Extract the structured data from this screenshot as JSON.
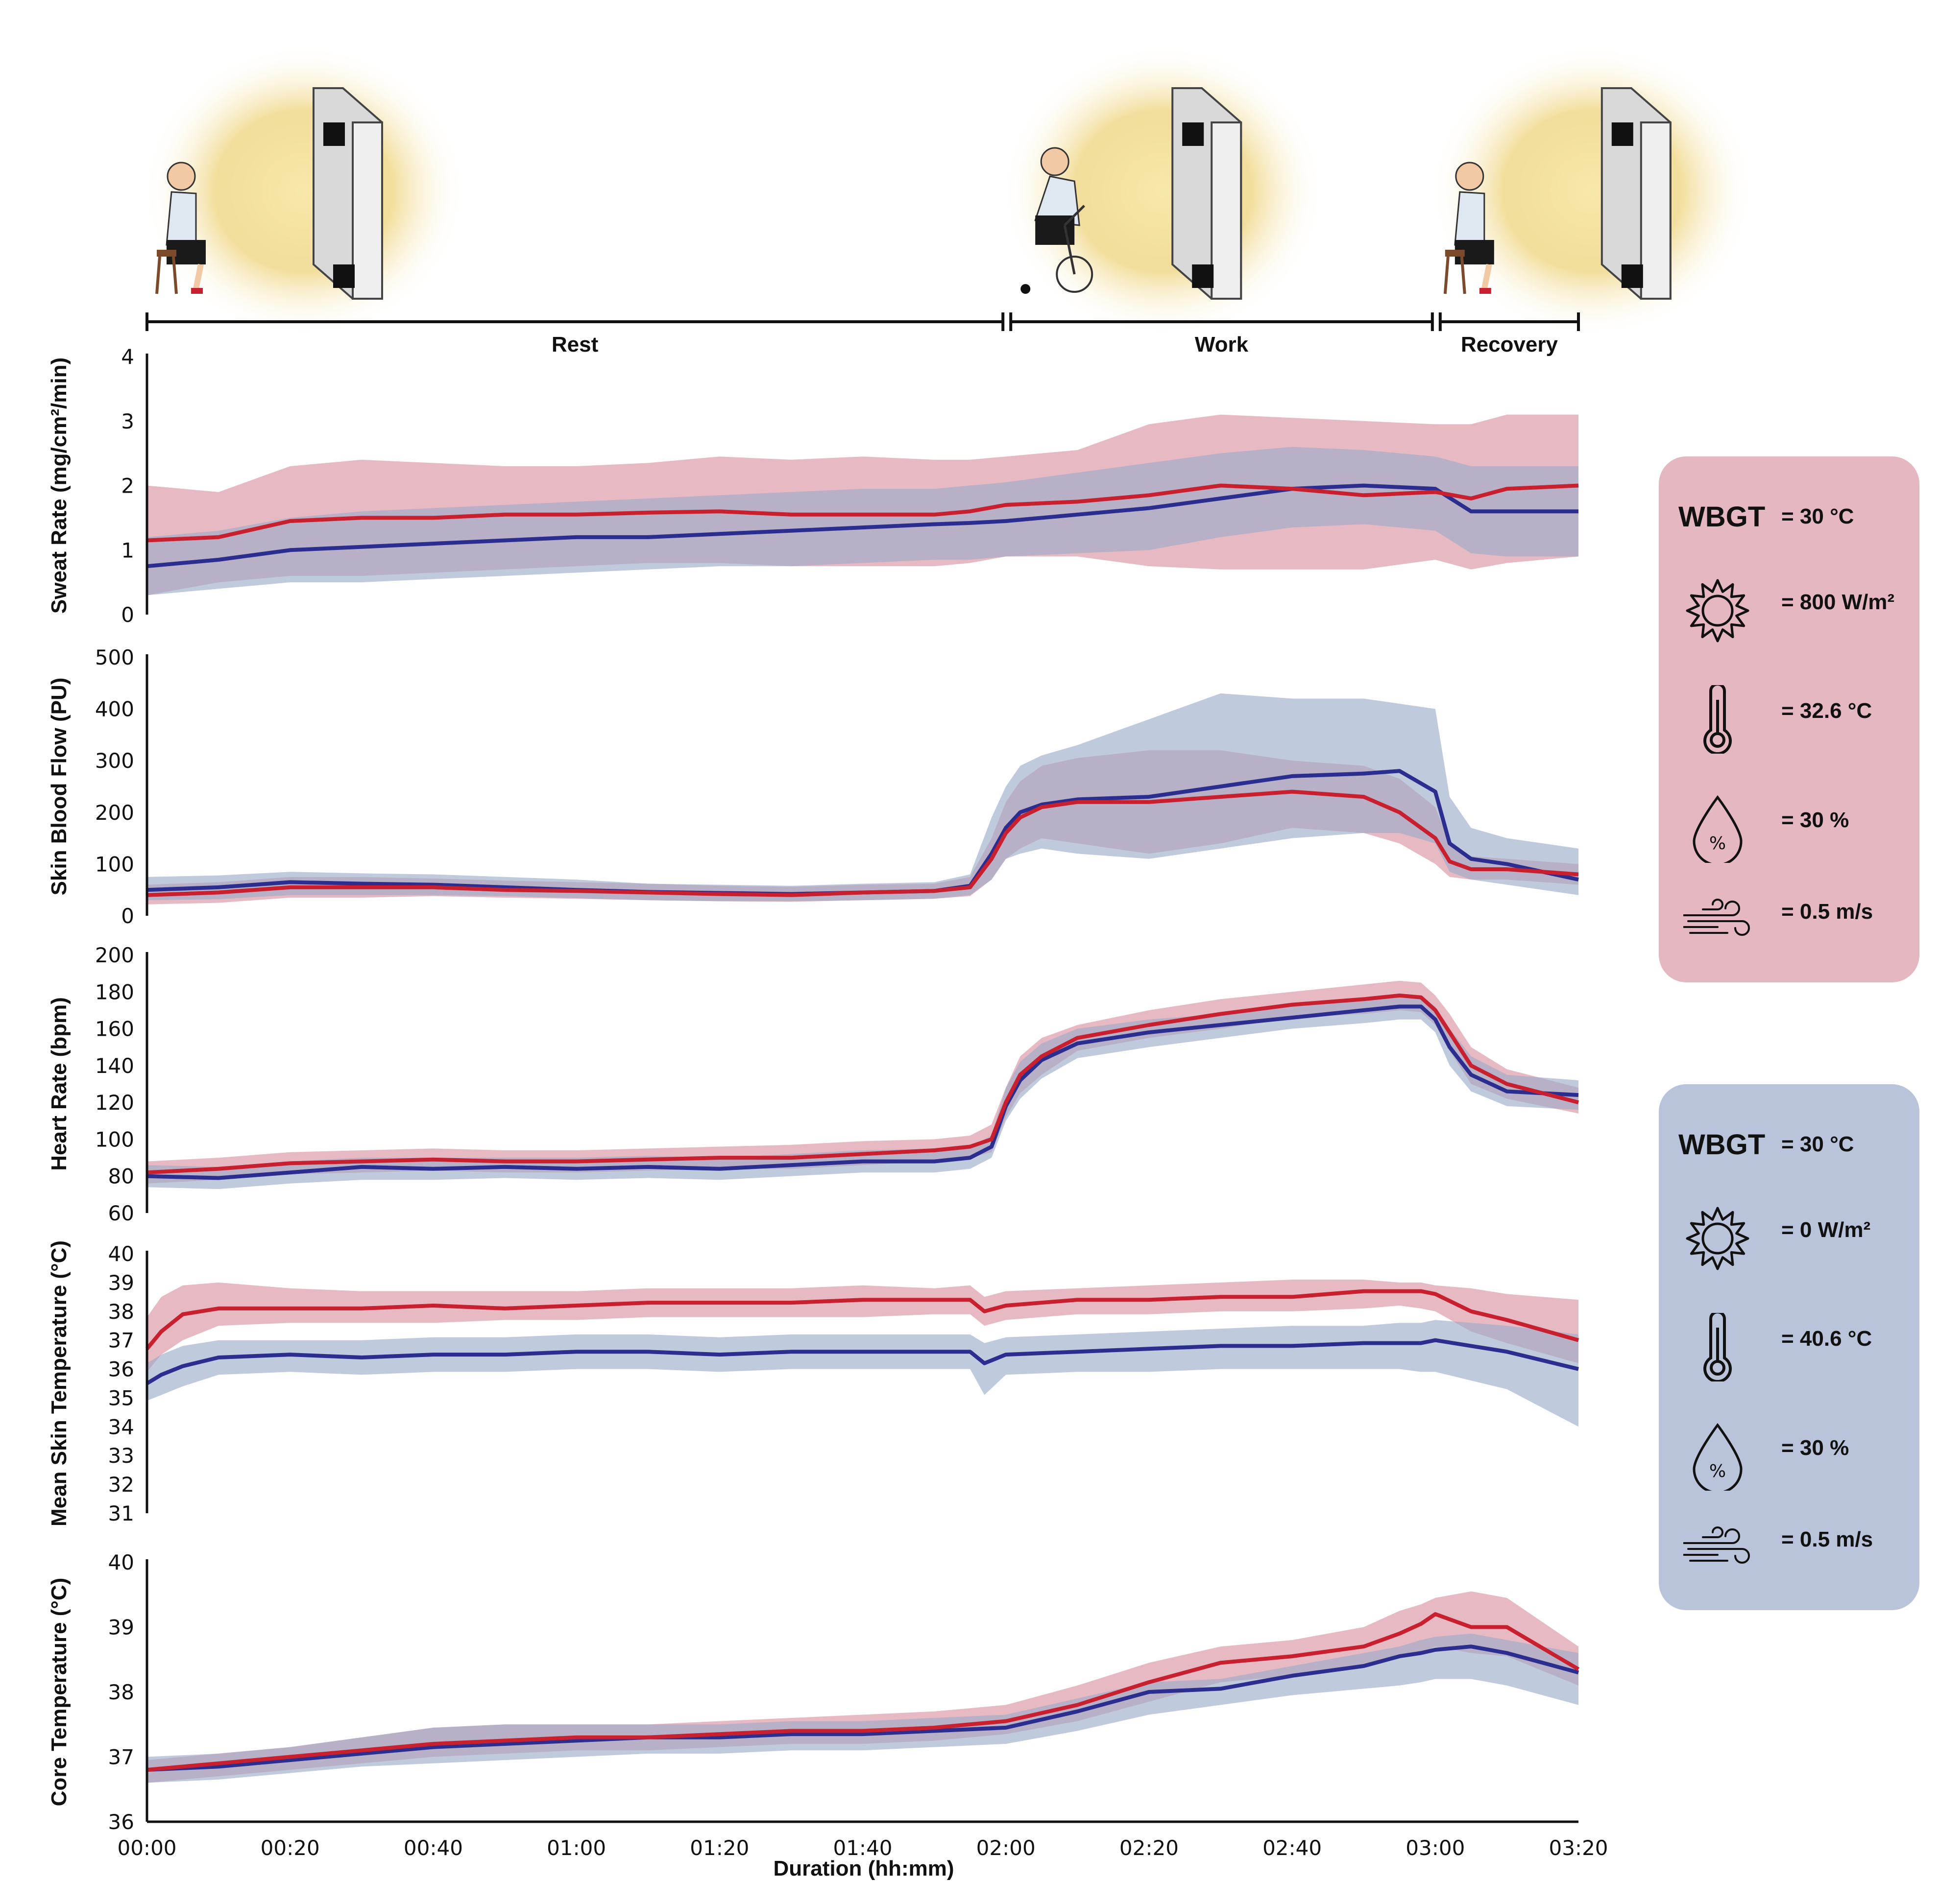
{
  "colors": {
    "heat": "#c8202f",
    "heat_band": "#d9909e",
    "cool": "#2b2d8f",
    "cool_band": "#9aaac8",
    "heat_box": "#e5b7c1",
    "cool_box": "#b9c4da"
  },
  "phases": [
    {
      "label": "Rest",
      "from": 0,
      "to": 120
    },
    {
      "label": "Work",
      "from": 120,
      "to": 180
    },
    {
      "label": "Recovery",
      "from": 180,
      "to": 200
    }
  ],
  "illustrations": [
    {
      "name": "seated-person-lamp-panel",
      "at": 0
    },
    {
      "name": "cycling-person-lamp-panel",
      "at": 120
    },
    {
      "name": "seated-person-lamp-panel",
      "at": 180
    }
  ],
  "legends": [
    {
      "wbgt_label": "WBGT",
      "wbgt": "= 30 °C",
      "solar": "= 800 W/m²",
      "temp": "= 32.6 °C",
      "humidity": "= 30 %",
      "wind": "= 0.5 m/s",
      "series": "heat"
    },
    {
      "wbgt_label": "WBGT",
      "wbgt": "= 30 °C",
      "solar": "= 0 W/m²",
      "temp": "= 40.6 °C",
      "humidity": "= 30 %",
      "wind": "= 0.5 m/s",
      "series": "cool"
    }
  ],
  "chart_data": [
    {
      "type": "line",
      "ylabel": "Sweat Rate (mg/cm²/min)",
      "ylim": [
        0,
        4
      ],
      "yticks": [
        0,
        1,
        2,
        3,
        4
      ],
      "xlim": [
        0,
        200
      ],
      "x": [
        0,
        10,
        20,
        30,
        40,
        50,
        60,
        70,
        80,
        90,
        100,
        110,
        115,
        120,
        130,
        140,
        150,
        160,
        170,
        180,
        185,
        190,
        200
      ],
      "series": [
        {
          "name": "heat",
          "mean": [
            1.15,
            1.2,
            1.45,
            1.5,
            1.5,
            1.55,
            1.55,
            1.58,
            1.6,
            1.55,
            1.55,
            1.55,
            1.6,
            1.7,
            1.75,
            1.85,
            2.0,
            1.95,
            1.85,
            1.9,
            1.8,
            1.95,
            2.0
          ],
          "upper": [
            2.0,
            1.9,
            2.3,
            2.4,
            2.35,
            2.3,
            2.3,
            2.35,
            2.45,
            2.4,
            2.45,
            2.4,
            2.4,
            2.45,
            2.55,
            2.95,
            3.1,
            3.05,
            3.0,
            2.95,
            2.95,
            3.1,
            3.1
          ],
          "lower": [
            0.3,
            0.5,
            0.6,
            0.6,
            0.65,
            0.7,
            0.75,
            0.8,
            0.8,
            0.75,
            0.75,
            0.75,
            0.8,
            0.9,
            0.9,
            0.75,
            0.7,
            0.7,
            0.7,
            0.85,
            0.7,
            0.8,
            0.9
          ]
        },
        {
          "name": "cool",
          "mean": [
            0.75,
            0.85,
            1.0,
            1.05,
            1.1,
            1.15,
            1.2,
            1.2,
            1.25,
            1.3,
            1.35,
            1.4,
            1.42,
            1.45,
            1.55,
            1.65,
            1.8,
            1.95,
            2.0,
            1.95,
            1.6,
            1.6,
            1.6
          ],
          "upper": [
            1.2,
            1.3,
            1.5,
            1.6,
            1.65,
            1.7,
            1.75,
            1.8,
            1.85,
            1.9,
            1.95,
            1.95,
            2.0,
            2.05,
            2.2,
            2.35,
            2.5,
            2.6,
            2.55,
            2.45,
            2.3,
            2.3,
            2.3
          ],
          "lower": [
            0.3,
            0.4,
            0.5,
            0.5,
            0.55,
            0.6,
            0.65,
            0.7,
            0.75,
            0.75,
            0.8,
            0.85,
            0.85,
            0.9,
            0.95,
            1.0,
            1.2,
            1.35,
            1.4,
            1.3,
            0.95,
            0.9,
            0.9
          ]
        }
      ]
    },
    {
      "type": "line",
      "ylabel": "Skin Blood Flow (PU)",
      "ylim": [
        0,
        500
      ],
      "yticks": [
        0,
        100,
        200,
        300,
        400,
        500
      ],
      "xlim": [
        0,
        200
      ],
      "x": [
        0,
        10,
        20,
        30,
        40,
        50,
        60,
        70,
        80,
        90,
        100,
        110,
        115,
        118,
        120,
        122,
        125,
        130,
        140,
        150,
        160,
        170,
        175,
        180,
        182,
        185,
        190,
        200
      ],
      "series": [
        {
          "name": "heat",
          "mean": [
            40,
            45,
            55,
            55,
            55,
            50,
            48,
            45,
            42,
            40,
            45,
            48,
            55,
            110,
            160,
            190,
            210,
            220,
            220,
            230,
            240,
            230,
            200,
            150,
            105,
            90,
            90,
            80
          ],
          "upper": [
            60,
            65,
            75,
            75,
            72,
            68,
            65,
            62,
            58,
            56,
            60,
            62,
            75,
            150,
            220,
            260,
            290,
            305,
            320,
            320,
            300,
            290,
            265,
            210,
            140,
            115,
            110,
            100
          ],
          "lower": [
            22,
            25,
            35,
            35,
            38,
            35,
            33,
            30,
            28,
            27,
            30,
            33,
            38,
            70,
            110,
            130,
            150,
            140,
            120,
            140,
            170,
            160,
            140,
            100,
            75,
            70,
            70,
            60
          ]
        },
        {
          "name": "cool",
          "mean": [
            50,
            55,
            65,
            62,
            60,
            55,
            50,
            46,
            44,
            42,
            45,
            48,
            58,
            120,
            170,
            200,
            215,
            225,
            230,
            250,
            270,
            275,
            280,
            240,
            140,
            110,
            100,
            70
          ],
          "upper": [
            75,
            78,
            85,
            82,
            80,
            75,
            70,
            62,
            60,
            58,
            62,
            65,
            80,
            190,
            250,
            290,
            310,
            330,
            380,
            430,
            420,
            420,
            410,
            400,
            230,
            170,
            150,
            130
          ],
          "lower": [
            30,
            32,
            40,
            40,
            40,
            38,
            34,
            30,
            28,
            28,
            30,
            33,
            40,
            70,
            110,
            120,
            130,
            120,
            110,
            130,
            150,
            160,
            160,
            140,
            85,
            70,
            60,
            40
          ]
        }
      ]
    },
    {
      "type": "line",
      "ylabel": "Heart Rate (bpm)",
      "ylim": [
        60,
        200
      ],
      "yticks": [
        60,
        80,
        100,
        120,
        140,
        160,
        180,
        200
      ],
      "xlim": [
        0,
        200
      ],
      "x": [
        0,
        10,
        20,
        30,
        40,
        50,
        60,
        70,
        80,
        90,
        100,
        110,
        115,
        118,
        120,
        122,
        125,
        130,
        140,
        150,
        160,
        170,
        175,
        178,
        180,
        182,
        185,
        190,
        200
      ],
      "series": [
        {
          "name": "heat",
          "mean": [
            82,
            84,
            87,
            88,
            89,
            88,
            88,
            89,
            90,
            90,
            92,
            94,
            96,
            100,
            120,
            135,
            145,
            155,
            162,
            168,
            173,
            176,
            178,
            177,
            170,
            158,
            140,
            130,
            120
          ],
          "upper": [
            88,
            90,
            93,
            94,
            95,
            94,
            94,
            95,
            96,
            97,
            99,
            100,
            102,
            108,
            128,
            145,
            155,
            162,
            170,
            176,
            180,
            184,
            186,
            185,
            178,
            168,
            150,
            138,
            128
          ],
          "lower": [
            76,
            78,
            81,
            82,
            83,
            82,
            82,
            83,
            84,
            84,
            86,
            88,
            90,
            93,
            112,
            125,
            135,
            148,
            155,
            160,
            166,
            168,
            170,
            169,
            162,
            148,
            130,
            122,
            114
          ]
        },
        {
          "name": "cool",
          "mean": [
            80,
            79,
            82,
            85,
            84,
            85,
            84,
            85,
            84,
            86,
            88,
            88,
            90,
            96,
            118,
            132,
            143,
            152,
            158,
            162,
            166,
            170,
            172,
            172,
            165,
            150,
            135,
            126,
            124
          ],
          "upper": [
            86,
            85,
            88,
            90,
            90,
            90,
            90,
            91,
            90,
            92,
            94,
            95,
            96,
            102,
            128,
            142,
            152,
            160,
            165,
            168,
            172,
            176,
            178,
            178,
            172,
            160,
            145,
            135,
            132
          ],
          "lower": [
            74,
            73,
            76,
            78,
            78,
            79,
            78,
            79,
            78,
            80,
            82,
            82,
            84,
            90,
            110,
            122,
            133,
            144,
            150,
            155,
            160,
            163,
            165,
            165,
            158,
            140,
            126,
            118,
            116
          ]
        }
      ]
    },
    {
      "type": "line",
      "ylabel": "Mean Skin Temperature (°C)",
      "ylim": [
        31,
        40
      ],
      "yticks": [
        31,
        32,
        33,
        34,
        35,
        36,
        37,
        38,
        39,
        40
      ],
      "xlim": [
        0,
        200
      ],
      "x": [
        0,
        2,
        5,
        10,
        20,
        30,
        40,
        50,
        60,
        70,
        80,
        90,
        100,
        110,
        115,
        117,
        120,
        130,
        140,
        150,
        160,
        170,
        175,
        178,
        180,
        185,
        190,
        200
      ],
      "series": [
        {
          "name": "heat",
          "mean": [
            36.7,
            37.3,
            37.9,
            38.1,
            38.1,
            38.1,
            38.2,
            38.1,
            38.2,
            38.3,
            38.3,
            38.3,
            38.4,
            38.4,
            38.4,
            38.0,
            38.2,
            38.4,
            38.4,
            38.5,
            38.5,
            38.7,
            38.7,
            38.7,
            38.6,
            38.0,
            37.7,
            37.0
          ],
          "upper": [
            37.8,
            38.5,
            38.9,
            39.0,
            38.8,
            38.7,
            38.7,
            38.7,
            38.7,
            38.8,
            38.8,
            38.8,
            38.9,
            38.8,
            38.9,
            38.5,
            38.7,
            38.8,
            38.9,
            39.0,
            39.1,
            39.1,
            39.0,
            39.0,
            38.9,
            38.8,
            38.6,
            38.4
          ],
          "lower": [
            35.9,
            36.5,
            37.0,
            37.5,
            37.6,
            37.6,
            37.6,
            37.7,
            37.7,
            37.8,
            37.8,
            37.8,
            37.8,
            37.9,
            37.9,
            37.5,
            37.7,
            37.9,
            37.9,
            38.0,
            38.0,
            38.1,
            38.2,
            38.1,
            38.0,
            37.3,
            36.9,
            36.2
          ]
        },
        {
          "name": "cool",
          "mean": [
            35.5,
            35.8,
            36.1,
            36.4,
            36.5,
            36.4,
            36.5,
            36.5,
            36.6,
            36.6,
            36.5,
            36.6,
            36.6,
            36.6,
            36.6,
            36.2,
            36.5,
            36.6,
            36.7,
            36.8,
            36.8,
            36.9,
            36.9,
            36.9,
            37.0,
            36.8,
            36.6,
            36.0
          ],
          "upper": [
            36.2,
            36.5,
            36.8,
            37.0,
            37.0,
            37.0,
            37.1,
            37.1,
            37.2,
            37.2,
            37.1,
            37.2,
            37.2,
            37.2,
            37.2,
            36.9,
            37.1,
            37.2,
            37.3,
            37.4,
            37.5,
            37.5,
            37.6,
            37.6,
            37.7,
            37.6,
            37.5,
            37.2
          ],
          "lower": [
            34.9,
            35.1,
            35.4,
            35.8,
            35.9,
            35.8,
            35.9,
            35.9,
            36.0,
            36.0,
            35.9,
            36.0,
            36.0,
            36.0,
            36.0,
            35.1,
            35.8,
            35.9,
            35.9,
            36.0,
            36.0,
            36.0,
            36.0,
            35.9,
            35.9,
            35.6,
            35.3,
            34.0
          ]
        }
      ]
    },
    {
      "type": "line",
      "ylabel": "Core Temperature (°C)",
      "ylim": [
        36,
        40
      ],
      "yticks": [
        36,
        37,
        38,
        39,
        40
      ],
      "xlim": [
        0,
        200
      ],
      "x": [
        0,
        10,
        20,
        30,
        40,
        50,
        60,
        70,
        80,
        90,
        100,
        110,
        120,
        130,
        140,
        150,
        160,
        170,
        175,
        178,
        180,
        185,
        190,
        200
      ],
      "series": [
        {
          "name": "heat",
          "mean": [
            36.8,
            36.9,
            37.0,
            37.1,
            37.2,
            37.25,
            37.3,
            37.3,
            37.35,
            37.4,
            37.4,
            37.45,
            37.55,
            37.8,
            38.15,
            38.45,
            38.55,
            38.7,
            38.9,
            39.05,
            39.2,
            39.0,
            39.0,
            38.35
          ],
          "upper": [
            36.95,
            37.05,
            37.15,
            37.3,
            37.45,
            37.5,
            37.5,
            37.5,
            37.55,
            37.6,
            37.65,
            37.7,
            37.8,
            38.1,
            38.45,
            38.7,
            38.8,
            39.0,
            39.25,
            39.35,
            39.45,
            39.55,
            39.45,
            38.7
          ],
          "lower": [
            36.6,
            36.7,
            36.8,
            36.9,
            37.0,
            37.05,
            37.1,
            37.1,
            37.15,
            37.2,
            37.2,
            37.25,
            37.35,
            37.55,
            37.85,
            38.15,
            38.25,
            38.4,
            38.55,
            38.6,
            38.7,
            38.6,
            38.55,
            38.1
          ]
        },
        {
          "name": "cool",
          "mean": [
            36.8,
            36.85,
            36.95,
            37.05,
            37.15,
            37.2,
            37.25,
            37.3,
            37.3,
            37.35,
            37.35,
            37.4,
            37.45,
            37.7,
            38.0,
            38.05,
            38.25,
            38.4,
            38.55,
            38.6,
            38.65,
            38.7,
            38.6,
            38.3
          ],
          "upper": [
            37.0,
            37.05,
            37.15,
            37.3,
            37.45,
            37.5,
            37.5,
            37.5,
            37.5,
            37.55,
            37.55,
            37.6,
            37.65,
            37.9,
            38.15,
            38.2,
            38.4,
            38.6,
            38.7,
            38.8,
            38.85,
            38.9,
            38.8,
            38.6
          ],
          "lower": [
            36.6,
            36.65,
            36.75,
            36.85,
            36.9,
            36.95,
            37.0,
            37.05,
            37.05,
            37.1,
            37.1,
            37.15,
            37.2,
            37.4,
            37.65,
            37.8,
            37.95,
            38.05,
            38.1,
            38.15,
            38.2,
            38.2,
            38.1,
            37.8
          ]
        }
      ],
      "xticks": [
        "00:00",
        "00:20",
        "00:40",
        "01:00",
        "01:20",
        "01:40",
        "02:00",
        "02:20",
        "02:40",
        "03:00",
        "03:20"
      ],
      "xlabel": "Duration (hh:mm)"
    }
  ]
}
